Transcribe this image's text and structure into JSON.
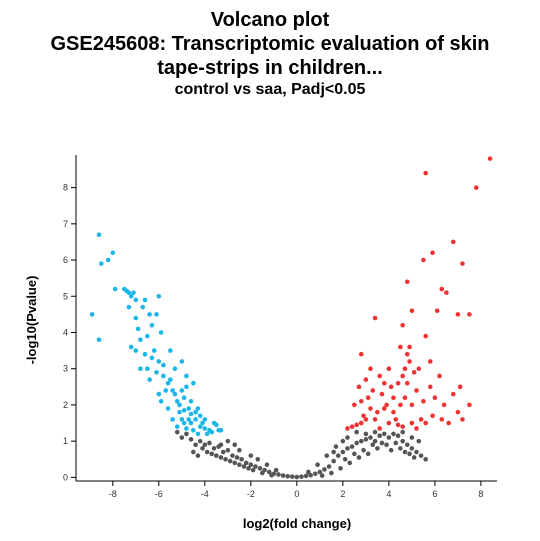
{
  "chart_data": {
    "type": "scatter",
    "title": [
      "Volcano plot",
      "GSE245608: Transcriptomic evaluation of skin",
      "tape-strips in children..."
    ],
    "subtitle": "control vs saa, Padj<0.05",
    "xlabel": "log2(fold change)",
    "ylabel": "-log10(Pvalue)",
    "xlim": [
      -9.6,
      8.7
    ],
    "ylim": [
      -0.1,
      8.9
    ],
    "xticks": [
      -8,
      -6,
      -4,
      -2,
      0,
      2,
      4,
      6,
      8
    ],
    "yticks": [
      0,
      1,
      2,
      3,
      4,
      5,
      6,
      7,
      8
    ],
    "grid": false,
    "legend": "none",
    "colors": {
      "down": "#1ab6ea",
      "up": "#ee3333",
      "ns": "#555555"
    },
    "series": [
      {
        "key": "down",
        "points": [
          [
            -8.9,
            4.5
          ],
          [
            -8.6,
            6.7
          ],
          [
            -8.6,
            3.8
          ],
          [
            -8.5,
            5.9
          ],
          [
            -8.2,
            6.0
          ],
          [
            -8.0,
            6.2
          ],
          [
            -7.9,
            5.2
          ],
          [
            -7.5,
            5.2
          ],
          [
            -7.4,
            5.15
          ],
          [
            -7.3,
            5.1
          ],
          [
            -7.2,
            5.0
          ],
          [
            -7.1,
            5.1
          ],
          [
            -7.0,
            4.9
          ],
          [
            -7.3,
            4.7
          ],
          [
            -7.0,
            4.4
          ],
          [
            -6.9,
            4.1
          ],
          [
            -7.2,
            3.6
          ],
          [
            -6.8,
            3.8
          ],
          [
            -6.7,
            4.7
          ],
          [
            -6.6,
            4.9
          ],
          [
            -6.4,
            4.5
          ],
          [
            -6.3,
            4.2
          ],
          [
            -6.1,
            4.5
          ],
          [
            -5.9,
            4.0
          ],
          [
            -6.0,
            5.0
          ],
          [
            -6.2,
            3.5
          ],
          [
            -6.6,
            3.4
          ],
          [
            -6.5,
            3.9
          ],
          [
            -5.8,
            3.1
          ],
          [
            -5.6,
            2.6
          ],
          [
            -5.5,
            3.5
          ],
          [
            -5.3,
            3.0
          ],
          [
            -5.9,
            2.1
          ],
          [
            -5.7,
            2.4
          ],
          [
            -6.0,
            3.2
          ],
          [
            -5.0,
            3.2
          ],
          [
            -4.8,
            2.5
          ],
          [
            -4.6,
            2.1
          ],
          [
            -4.4,
            1.8
          ],
          [
            -4.2,
            1.4
          ],
          [
            -4.0,
            1.6
          ],
          [
            -3.8,
            1.3
          ],
          [
            -3.6,
            1.5
          ],
          [
            -3.4,
            1.3
          ],
          [
            -5.1,
            1.8
          ],
          [
            -4.9,
            1.5
          ],
          [
            -5.2,
            1.4
          ],
          [
            -4.7,
            1.6
          ],
          [
            -4.5,
            1.3
          ],
          [
            -4.3,
            1.2
          ],
          [
            -5.4,
            1.6
          ],
          [
            -5.1,
            2.0
          ],
          [
            -4.9,
            2.2
          ],
          [
            -4.7,
            1.9
          ],
          [
            -4.6,
            1.5
          ],
          [
            -4.4,
            1.6
          ],
          [
            -4.8,
            1.35
          ],
          [
            -5.0,
            1.6
          ],
          [
            -4.2,
            1.7
          ],
          [
            -4.0,
            1.35
          ],
          [
            -3.9,
            1.2
          ],
          [
            -5.3,
            2.3
          ],
          [
            -5.6,
            1.9
          ],
          [
            -5.5,
            2.7
          ],
          [
            -6.1,
            2.9
          ],
          [
            -6.3,
            3.3
          ],
          [
            -6.4,
            2.7
          ],
          [
            -6.8,
            3.0
          ],
          [
            -7.0,
            3.5
          ],
          [
            -6.5,
            3.0
          ],
          [
            -4.1,
            1.5
          ],
          [
            -4.3,
            1.9
          ],
          [
            -4.5,
            2.6
          ],
          [
            -4.8,
            2.8
          ],
          [
            -5.0,
            2.4
          ],
          [
            -4.6,
            1.75
          ],
          [
            -4.9,
            1.85
          ],
          [
            -3.7,
            1.25
          ],
          [
            -3.5,
            1.45
          ],
          [
            -3.3,
            1.3
          ],
          [
            -5.2,
            2.1
          ],
          [
            -5.4,
            2.4
          ],
          [
            -5.8,
            2.8
          ],
          [
            -6.0,
            2.3
          ]
        ]
      },
      {
        "key": "up",
        "points": [
          [
            8.4,
            8.8
          ],
          [
            7.8,
            8.0
          ],
          [
            5.6,
            8.4
          ],
          [
            6.8,
            6.5
          ],
          [
            5.9,
            6.2
          ],
          [
            7.2,
            5.9
          ],
          [
            5.5,
            6.0
          ],
          [
            6.3,
            5.2
          ],
          [
            6.5,
            5.1
          ],
          [
            4.8,
            5.4
          ],
          [
            7.0,
            4.5
          ],
          [
            7.5,
            4.5
          ],
          [
            3.4,
            4.4
          ],
          [
            5.0,
            4.6
          ],
          [
            4.6,
            4.2
          ],
          [
            6.1,
            4.6
          ],
          [
            4.8,
            3.4
          ],
          [
            4.9,
            3.2
          ],
          [
            4.7,
            3.0
          ],
          [
            4.6,
            2.8
          ],
          [
            4.5,
            3.6
          ],
          [
            5.6,
            3.9
          ],
          [
            5.2,
            2.4
          ],
          [
            4.2,
            2.2
          ],
          [
            3.9,
            2.0
          ],
          [
            3.5,
            1.8
          ],
          [
            3.2,
            1.9
          ],
          [
            3.0,
            1.6
          ],
          [
            2.8,
            1.5
          ],
          [
            2.6,
            1.45
          ],
          [
            2.4,
            1.4
          ],
          [
            2.2,
            1.35
          ],
          [
            3.8,
            2.6
          ],
          [
            3.3,
            2.4
          ],
          [
            2.8,
            2.1
          ],
          [
            6.0,
            2.2
          ],
          [
            5.8,
            2.5
          ],
          [
            6.4,
            2.0
          ],
          [
            7.0,
            1.8
          ],
          [
            7.5,
            2.0
          ],
          [
            4.0,
            1.5
          ],
          [
            4.3,
            1.6
          ],
          [
            5.0,
            1.5
          ],
          [
            5.4,
            1.6
          ],
          [
            5.6,
            1.5
          ],
          [
            6.6,
            1.5
          ],
          [
            7.2,
            1.6
          ],
          [
            2.8,
            3.4
          ],
          [
            3.0,
            2.7
          ],
          [
            3.6,
            2.8
          ],
          [
            4.0,
            3.0
          ],
          [
            4.4,
            2.6
          ],
          [
            4.7,
            2.2
          ],
          [
            5.0,
            2.0
          ],
          [
            5.3,
            3.0
          ],
          [
            5.8,
            3.2
          ],
          [
            6.2,
            2.8
          ],
          [
            3.2,
            3.0
          ],
          [
            2.5,
            2.0
          ],
          [
            3.7,
            2.3
          ],
          [
            4.1,
            2.5
          ],
          [
            4.9,
            3.6
          ],
          [
            5.1,
            2.9
          ],
          [
            5.5,
            2.1
          ],
          [
            6.8,
            2.3
          ],
          [
            7.1,
            2.5
          ],
          [
            4.2,
            1.8
          ],
          [
            3.4,
            1.6
          ],
          [
            2.9,
            1.7
          ],
          [
            5.9,
            1.7
          ],
          [
            6.3,
            1.6
          ],
          [
            4.6,
            1.4
          ],
          [
            4.4,
            1.45
          ],
          [
            3.6,
            1.35
          ],
          [
            5.2,
            1.35
          ],
          [
            3.1,
            2.2
          ],
          [
            3.8,
            1.9
          ],
          [
            4.5,
            2.0
          ],
          [
            4.8,
            2.6
          ],
          [
            2.7,
            2.5
          ]
        ]
      },
      {
        "key": "ns",
        "points": [
          [
            -4.2,
            1.0
          ],
          [
            -4.0,
            0.9
          ],
          [
            -3.8,
            0.95
          ],
          [
            -3.6,
            0.8
          ],
          [
            -3.4,
            0.85
          ],
          [
            -3.2,
            0.7
          ],
          [
            -3.0,
            0.75
          ],
          [
            -2.8,
            0.6
          ],
          [
            -2.6,
            0.55
          ],
          [
            -2.4,
            0.5
          ],
          [
            -2.2,
            0.4
          ],
          [
            -2.0,
            0.35
          ],
          [
            -1.8,
            0.3
          ],
          [
            -1.6,
            0.25
          ],
          [
            -1.4,
            0.2
          ],
          [
            -1.2,
            0.15
          ],
          [
            -1.0,
            0.1
          ],
          [
            -0.8,
            0.08
          ],
          [
            -0.6,
            0.05
          ],
          [
            -0.4,
            0.03
          ],
          [
            -0.2,
            0.02
          ],
          [
            0.0,
            0.01
          ],
          [
            0.2,
            0.02
          ],
          [
            0.4,
            0.04
          ],
          [
            0.6,
            0.06
          ],
          [
            0.8,
            0.1
          ],
          [
            1.0,
            0.15
          ],
          [
            1.2,
            0.22
          ],
          [
            1.4,
            0.3
          ],
          [
            1.6,
            0.45
          ],
          [
            1.8,
            0.6
          ],
          [
            2.0,
            0.7
          ],
          [
            2.2,
            0.8
          ],
          [
            2.4,
            0.85
          ],
          [
            2.6,
            0.95
          ],
          [
            2.8,
            1.0
          ],
          [
            3.0,
            1.05
          ],
          [
            3.2,
            1.1
          ],
          [
            3.4,
            1.0
          ],
          [
            3.6,
            1.15
          ],
          [
            3.8,
            1.2
          ],
          [
            4.0,
            1.1
          ],
          [
            4.2,
            1.2
          ],
          [
            4.4,
            1.15
          ],
          [
            4.6,
            1.0
          ],
          [
            4.8,
            0.9
          ],
          [
            5.0,
            0.8
          ],
          [
            5.2,
            0.7
          ],
          [
            5.4,
            0.6
          ],
          [
            5.6,
            0.5
          ],
          [
            -4.8,
            1.2
          ],
          [
            -5.0,
            1.1
          ],
          [
            -4.6,
            1.05
          ],
          [
            -4.4,
            0.9
          ],
          [
            -3.9,
            0.7
          ],
          [
            -3.5,
            0.6
          ],
          [
            -3.1,
            0.5
          ],
          [
            -2.7,
            0.4
          ],
          [
            -2.3,
            0.3
          ],
          [
            -1.9,
            0.2
          ],
          [
            -1.5,
            0.12
          ],
          [
            -1.1,
            0.06
          ],
          [
            1.1,
            0.05
          ],
          [
            1.5,
            0.12
          ],
          [
            1.9,
            0.25
          ],
          [
            2.3,
            0.4
          ],
          [
            2.7,
            0.55
          ],
          [
            3.1,
            0.65
          ],
          [
            3.5,
            0.8
          ],
          [
            3.9,
            0.9
          ],
          [
            4.3,
            0.95
          ],
          [
            4.7,
            0.7
          ],
          [
            5.1,
            0.55
          ],
          [
            -5.2,
            1.25
          ],
          [
            -4.1,
            0.8
          ],
          [
            -3.7,
            0.65
          ],
          [
            -3.3,
            0.55
          ],
          [
            -2.9,
            0.45
          ],
          [
            -2.5,
            0.35
          ],
          [
            -2.1,
            0.25
          ],
          [
            2.1,
            0.5
          ],
          [
            2.5,
            0.65
          ],
          [
            2.9,
            0.75
          ],
          [
            3.3,
            0.9
          ],
          [
            3.7,
            0.95
          ],
          [
            4.1,
            0.75
          ],
          [
            4.5,
            0.8
          ],
          [
            4.9,
            0.65
          ],
          [
            -4.5,
            0.7
          ],
          [
            -4.3,
            0.6
          ],
          [
            -3.3,
            0.9
          ],
          [
            -2.5,
            0.75
          ],
          [
            1.7,
            0.85
          ],
          [
            2.0,
            1.0
          ],
          [
            3.0,
            1.2
          ],
          [
            1.3,
            0.6
          ],
          [
            5.3,
            1.0
          ],
          [
            5.0,
            1.1
          ],
          [
            4.6,
            1.25
          ],
          [
            -3.0,
            1.0
          ],
          [
            -2.7,
            0.9
          ],
          [
            -1.7,
            0.5
          ],
          [
            -1.3,
            0.35
          ],
          [
            0.9,
            0.35
          ],
          [
            1.6,
            0.7
          ],
          [
            2.2,
            1.1
          ],
          [
            2.6,
            1.25
          ],
          [
            3.4,
            1.25
          ],
          [
            -2.0,
            0.6
          ],
          [
            -0.9,
            0.2
          ],
          [
            0.5,
            0.15
          ]
        ]
      }
    ]
  }
}
